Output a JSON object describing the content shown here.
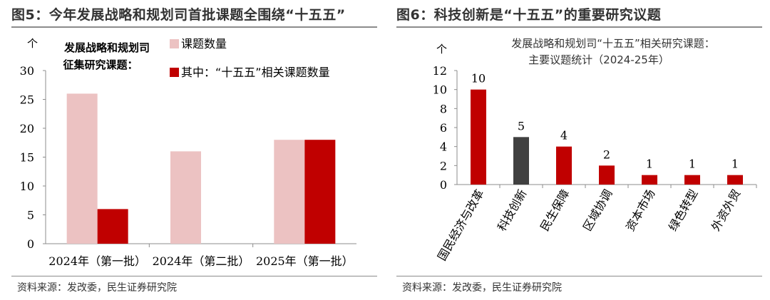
{
  "figure5": {
    "title": "图5：今年发展战略和规划司首批课题全围绕“十五五”",
    "source": "资料来源：发改委，民生证券研究院",
    "chart_data": {
      "type": "bar",
      "title": "发展战略和规划司征集研究课题：",
      "title_lines": [
        "发展战略和规划司",
        "征集研究课题："
      ],
      "ylabel": "个",
      "categories": [
        "2024年（第一批）",
        "2024年（第二批）",
        "2025年（第一批）"
      ],
      "ylim": [
        0,
        30
      ],
      "yticks": [
        0,
        5,
        10,
        15,
        20,
        25,
        30
      ],
      "series": [
        {
          "name": "课题数量",
          "values": [
            26,
            16,
            18
          ],
          "color": "#ecc2c2"
        },
        {
          "name": "其中：“十五五”相关课题数量",
          "values": [
            6,
            0,
            18
          ],
          "color": "#c00000"
        }
      ],
      "legend": "top-right",
      "grid": false
    }
  },
  "figure6": {
    "title": "图6：科技创新是“十五五”的重要研究议题",
    "source": "资料来源：发改委，民生证券研究院",
    "chart_data": {
      "type": "bar",
      "title": "发展战略和规划司“十五五”相关研究课题：主要议题统计（2024-25年）",
      "title_lines": [
        "发展战略和规划司“十五五”相关研究课题：",
        "主要议题统计（2024-25年）"
      ],
      "ylabel": "个",
      "categories": [
        "国民经济与改革",
        "科技创新",
        "民生保障",
        "区域协调",
        "资本市场",
        "绿色转型",
        "外资外贸"
      ],
      "values": [
        10,
        5,
        4,
        2,
        1,
        1,
        1
      ],
      "colors": [
        "#c00000",
        "#404040",
        "#c00000",
        "#c00000",
        "#c00000",
        "#c00000",
        "#c00000"
      ],
      "ylim": [
        0,
        12
      ],
      "yticks": [
        0,
        2,
        4,
        6,
        8,
        10,
        12
      ],
      "data_labels": true,
      "grid": false
    }
  }
}
